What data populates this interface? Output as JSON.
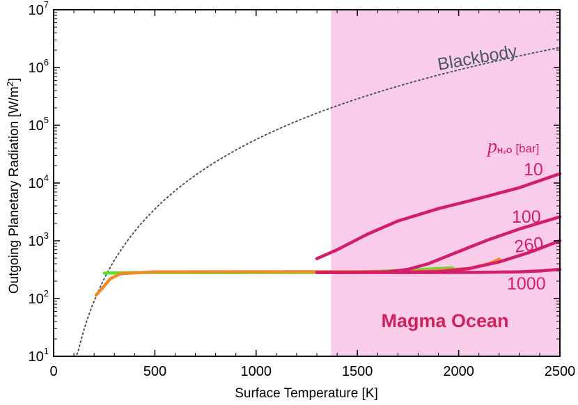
{
  "chart_data": {
    "type": "line",
    "title": "",
    "xlabel": "Surface Temperature [K]",
    "ylabel": "Outgoing Planetary Radiation [W/m",
    "ylabel_sup": "2",
    "ylabel_end": "]",
    "xlim": [
      0,
      2500
    ],
    "ylim_log10": [
      1,
      7
    ],
    "x_ticks": [
      "0",
      "500",
      "1000",
      "1500",
      "2000",
      "2500"
    ],
    "x_tick_values": [
      0,
      500,
      1000,
      1500,
      2000,
      2500
    ],
    "y_ticks": [
      {
        "base": "10",
        "exp": "1"
      },
      {
        "base": "10",
        "exp": "2"
      },
      {
        "base": "10",
        "exp": "3"
      },
      {
        "base": "10",
        "exp": "4"
      },
      {
        "base": "10",
        "exp": "5"
      },
      {
        "base": "10",
        "exp": "6"
      },
      {
        "base": "10",
        "exp": "7"
      }
    ],
    "y_tick_exponents": [
      1,
      2,
      3,
      4,
      5,
      6,
      7
    ],
    "shaded_region": {
      "label": "Magma Ocean",
      "x_start": 1370,
      "x_end": 2500,
      "color": "#f9cde9"
    },
    "legend_title": {
      "p": "p",
      "sub": "H₂O",
      "unit": "[bar]"
    },
    "blackbody": {
      "name": "Blackbody",
      "color": "#4b5563",
      "style": "dotted",
      "x_start": 100,
      "x_end": 2500
    },
    "series": [
      {
        "name": "green",
        "color": "#5ee033",
        "points": [
          [
            250,
            275
          ],
          [
            400,
            282
          ],
          [
            800,
            282
          ],
          [
            1300,
            283
          ],
          [
            1600,
            295
          ],
          [
            1800,
            315
          ],
          [
            1970,
            340
          ]
        ]
      },
      {
        "name": "orange",
        "color": "#f08b2c",
        "points": [
          [
            210,
            115
          ],
          [
            240,
            150
          ],
          [
            280,
            220
          ],
          [
            330,
            270
          ],
          [
            500,
            290
          ],
          [
            1000,
            291
          ],
          [
            1500,
            292
          ],
          [
            1800,
            296
          ],
          [
            2050,
            330
          ],
          [
            2150,
            400
          ],
          [
            2200,
            480
          ]
        ]
      },
      {
        "name": "10",
        "label": "10",
        "color": "#d21f6a",
        "points": [
          [
            1300,
            490
          ],
          [
            1400,
            700
          ],
          [
            1550,
            1300
          ],
          [
            1700,
            2200
          ],
          [
            1900,
            3600
          ],
          [
            2100,
            5400
          ],
          [
            2300,
            8300
          ],
          [
            2500,
            14500
          ]
        ]
      },
      {
        "name": "100",
        "label": "100",
        "color": "#d21f6a",
        "points": [
          [
            1300,
            283
          ],
          [
            1500,
            284
          ],
          [
            1650,
            290
          ],
          [
            1750,
            320
          ],
          [
            1850,
            400
          ],
          [
            2000,
            650
          ],
          [
            2150,
            1050
          ],
          [
            2300,
            1600
          ],
          [
            2500,
            2600
          ]
        ]
      },
      {
        "name": "260",
        "label": "260",
        "color": "#d21f6a",
        "points": [
          [
            1300,
            283
          ],
          [
            1700,
            284
          ],
          [
            1900,
            292
          ],
          [
            2050,
            330
          ],
          [
            2200,
            430
          ],
          [
            2350,
            630
          ],
          [
            2500,
            1000
          ]
        ]
      },
      {
        "name": "1000",
        "label": "1000",
        "color": "#d21f6a",
        "points": [
          [
            1300,
            283
          ],
          [
            1800,
            282
          ],
          [
            2100,
            284
          ],
          [
            2300,
            290
          ],
          [
            2400,
            300
          ],
          [
            2500,
            320
          ]
        ]
      }
    ]
  }
}
